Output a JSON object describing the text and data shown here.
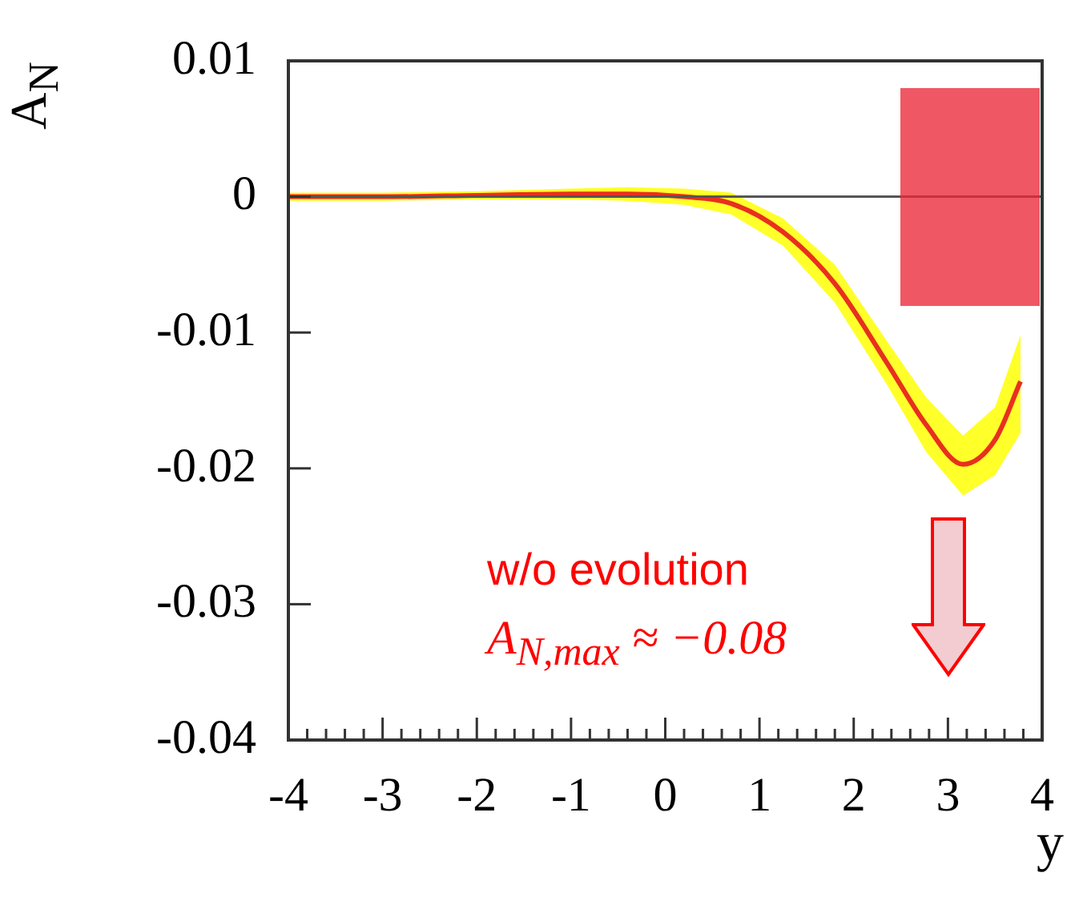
{
  "chart_data": {
    "type": "line",
    "xlabel": "y",
    "ylabel": "A$_{N}$",
    "xlim": [
      -4,
      4
    ],
    "ylim": [
      -0.04,
      0.01
    ],
    "xticks": [
      -4,
      {
        "value": -3.8,
        "label": null
      },
      {
        "value": -3.6,
        "label": null
      },
      {
        "value": -3.4,
        "label": null
      },
      {
        "value": -3.2,
        "label": null
      },
      -3,
      {
        "value": -2.8,
        "label": null
      },
      {
        "value": -2.6,
        "label": null
      },
      {
        "value": -2.4,
        "label": null
      },
      {
        "value": -2.2,
        "label": null
      },
      -2,
      {
        "value": -1.8,
        "label": null
      },
      {
        "value": -1.6,
        "label": null
      },
      {
        "value": -1.4,
        "label": null
      },
      {
        "value": -1.2,
        "label": null
      },
      -1,
      {
        "value": -0.8,
        "label": null
      },
      {
        "value": -0.6,
        "label": null
      },
      {
        "value": -0.4,
        "label": null
      },
      {
        "value": -0.2,
        "label": null
      },
      0,
      {
        "value": 0.2,
        "label": null
      },
      {
        "value": 0.4,
        "label": null
      },
      {
        "value": 0.6,
        "label": null
      },
      {
        "value": 0.8,
        "label": null
      },
      1,
      {
        "value": 1.2,
        "label": null
      },
      {
        "value": 1.4,
        "label": null
      },
      {
        "value": 1.6,
        "label": null
      },
      {
        "value": 1.8,
        "label": null
      },
      2,
      {
        "value": 2.2,
        "label": null
      },
      {
        "value": 2.4,
        "label": null
      },
      {
        "value": 2.6,
        "label": null
      },
      {
        "value": 2.8,
        "label": null
      },
      3,
      {
        "value": 3.2,
        "label": null
      },
      {
        "value": 3.4,
        "label": null
      },
      {
        "value": 3.6,
        "label": null
      },
      {
        "value": 3.8,
        "label": null
      },
      4
    ],
    "yticks": [
      -0.04,
      -0.03,
      -0.02,
      -0.01,
      0,
      0.01
    ],
    "series": [
      {
        "color": "#e8301f",
        "x": [
          -4,
          -3,
          -2,
          -1,
          -0.4,
          0.2,
          0.7,
          1.25,
          1.8,
          2.35,
          2.77,
          3.16,
          3.5,
          3.77
        ],
        "values": [
          0,
          0,
          0.0001,
          0.0002,
          0.0002,
          0,
          -0.0005,
          -0.0026,
          -0.0064,
          -0.0122,
          -0.0168,
          -0.0197,
          -0.0179,
          -0.0136
        ],
        "lower": [
          -0.0003,
          -0.0003,
          -0.0002,
          -0.0002,
          -0.0003,
          -0.0006,
          -0.0013,
          -0.0036,
          -0.0078,
          -0.0138,
          -0.0188,
          -0.022,
          -0.0205,
          -0.0174
        ],
        "upper": [
          0.0003,
          0.0003,
          0.0004,
          0.0006,
          0.0007,
          0.0006,
          0.0003,
          -0.0016,
          -0.005,
          -0.0106,
          -0.0148,
          -0.0176,
          -0.0155,
          -0.0102
        ]
      }
    ],
    "ref_lines": [
      {
        "axis": "y",
        "value": 0,
        "color": "#555555"
      }
    ],
    "annotations": [
      "w/o evolution",
      "A$_{N,max}$ ≈ −0.08"
    ]
  }
}
